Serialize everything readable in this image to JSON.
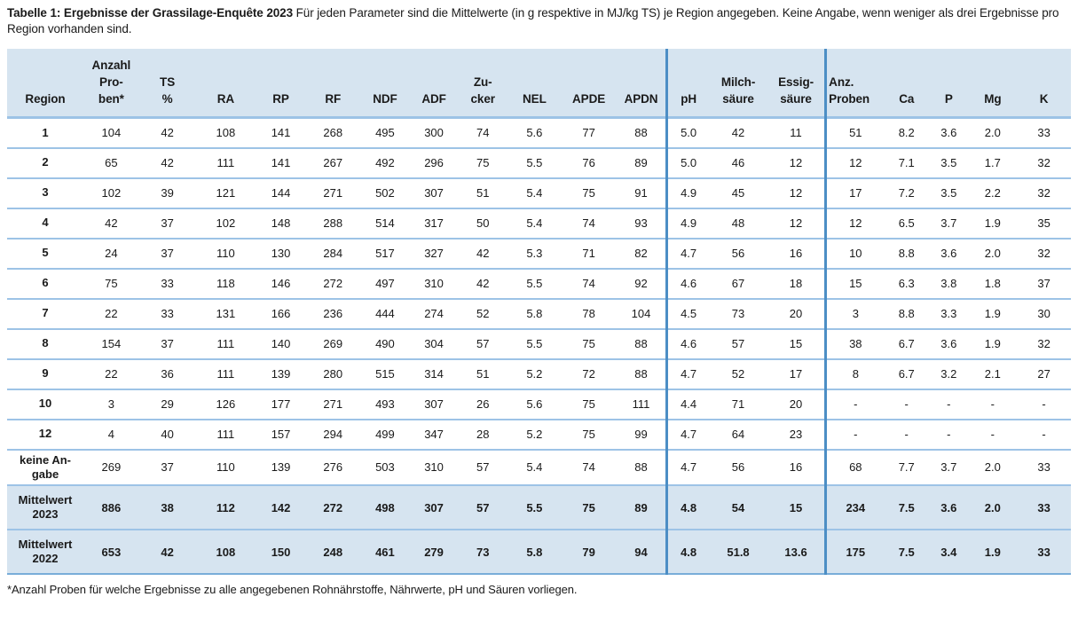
{
  "caption": {
    "bold": "Tabelle 1: Ergebnisse der Grassilage-Enquête 2023",
    "rest": " Für jeden Parameter sind die Mittelwerte (in g respektive in MJ/kg TS) je Region angegeben. Keine Angabe, wenn weniger als drei Ergebnisse pro Region vorhanden sind."
  },
  "colors": {
    "header_bg": "#d6e4f0",
    "row_line": "#9dc3e6",
    "divider": "#4c8ec5",
    "table_bottom": "#79add9",
    "text": "#1a1a1a"
  },
  "chart_data": {
    "type": "table",
    "title": "Tabelle 1: Ergebnisse der Grassilage-Enquête 2023"
  },
  "table": {
    "columns": [
      {
        "id": "region",
        "lines": [
          "Region"
        ]
      },
      {
        "id": "anzahl-proben",
        "lines": [
          "Anzahl",
          "Pro-",
          "ben*"
        ]
      },
      {
        "id": "ts-prozent",
        "lines": [
          "TS",
          "%"
        ]
      },
      {
        "id": "ra",
        "lines": [
          "RA"
        ]
      },
      {
        "id": "rp",
        "lines": [
          "RP"
        ]
      },
      {
        "id": "rf",
        "lines": [
          "RF"
        ]
      },
      {
        "id": "ndf",
        "lines": [
          "NDF"
        ]
      },
      {
        "id": "adf",
        "lines": [
          "ADF"
        ]
      },
      {
        "id": "zucker",
        "lines": [
          "Zu-",
          "cker"
        ]
      },
      {
        "id": "nel",
        "lines": [
          "NEL"
        ]
      },
      {
        "id": "apde",
        "lines": [
          "APDE"
        ]
      },
      {
        "id": "apdn",
        "lines": [
          "APDN"
        ]
      },
      {
        "id": "ph",
        "lines": [
          "pH"
        ]
      },
      {
        "id": "milchsaeure",
        "lines": [
          "Milch-",
          "säure"
        ]
      },
      {
        "id": "essigsaeure",
        "lines": [
          "Essig-",
          "säure"
        ]
      },
      {
        "id": "anz-proben",
        "lines": [
          "Anz.",
          "Proben"
        ],
        "align": "left"
      },
      {
        "id": "ca",
        "lines": [
          "Ca"
        ]
      },
      {
        "id": "p",
        "lines": [
          "P"
        ]
      },
      {
        "id": "mg",
        "lines": [
          "Mg"
        ]
      },
      {
        "id": "k",
        "lines": [
          "K"
        ]
      }
    ],
    "rows": [
      {
        "label_lines": [
          "1"
        ],
        "cells": [
          "104",
          "42",
          "108",
          "141",
          "268",
          "495",
          "300",
          "74",
          "5.6",
          "77",
          "88",
          "5.0",
          "42",
          "11",
          "51",
          "8.2",
          "3.6",
          "2.0",
          "33"
        ]
      },
      {
        "label_lines": [
          "2"
        ],
        "cells": [
          "65",
          "42",
          "111",
          "141",
          "267",
          "492",
          "296",
          "75",
          "5.5",
          "76",
          "89",
          "5.0",
          "46",
          "12",
          "12",
          "7.1",
          "3.5",
          "1.7",
          "32"
        ]
      },
      {
        "label_lines": [
          "3"
        ],
        "cells": [
          "102",
          "39",
          "121",
          "144",
          "271",
          "502",
          "307",
          "51",
          "5.4",
          "75",
          "91",
          "4.9",
          "45",
          "12",
          "17",
          "7.2",
          "3.5",
          "2.2",
          "32"
        ]
      },
      {
        "label_lines": [
          "4"
        ],
        "cells": [
          "42",
          "37",
          "102",
          "148",
          "288",
          "514",
          "317",
          "50",
          "5.4",
          "74",
          "93",
          "4.9",
          "48",
          "12",
          "12",
          "6.5",
          "3.7",
          "1.9",
          "35"
        ]
      },
      {
        "label_lines": [
          "5"
        ],
        "cells": [
          "24",
          "37",
          "110",
          "130",
          "284",
          "517",
          "327",
          "42",
          "5.3",
          "71",
          "82",
          "4.7",
          "56",
          "16",
          "10",
          "8.8",
          "3.6",
          "2.0",
          "32"
        ]
      },
      {
        "label_lines": [
          "6"
        ],
        "cells": [
          "75",
          "33",
          "118",
          "146",
          "272",
          "497",
          "310",
          "42",
          "5.5",
          "74",
          "92",
          "4.6",
          "67",
          "18",
          "15",
          "6.3",
          "3.8",
          "1.8",
          "37"
        ]
      },
      {
        "label_lines": [
          "7"
        ],
        "cells": [
          "22",
          "33",
          "131",
          "166",
          "236",
          "444",
          "274",
          "52",
          "5.8",
          "78",
          "104",
          "4.5",
          "73",
          "20",
          "3",
          "8.8",
          "3.3",
          "1.9",
          "30"
        ]
      },
      {
        "label_lines": [
          "8"
        ],
        "cells": [
          "154",
          "37",
          "111",
          "140",
          "269",
          "490",
          "304",
          "57",
          "5.5",
          "75",
          "88",
          "4.6",
          "57",
          "15",
          "38",
          "6.7",
          "3.6",
          "1.9",
          "32"
        ]
      },
      {
        "label_lines": [
          "9"
        ],
        "cells": [
          "22",
          "36",
          "111",
          "139",
          "280",
          "515",
          "314",
          "51",
          "5.2",
          "72",
          "88",
          "4.7",
          "52",
          "17",
          "8",
          "6.7",
          "3.2",
          "2.1",
          "27"
        ]
      },
      {
        "label_lines": [
          "10"
        ],
        "cells": [
          "3",
          "29",
          "126",
          "177",
          "271",
          "493",
          "307",
          "26",
          "5.6",
          "75",
          "111",
          "4.4",
          "71",
          "20",
          "-",
          "-",
          "-",
          "-",
          "-"
        ]
      },
      {
        "label_lines": [
          "12"
        ],
        "cells": [
          "4",
          "40",
          "111",
          "157",
          "294",
          "499",
          "347",
          "28",
          "5.2",
          "75",
          "99",
          "4.7",
          "64",
          "23",
          "-",
          "-",
          "-",
          "-",
          "-"
        ]
      },
      {
        "label_lines": [
          "keine An-",
          "gabe"
        ],
        "cells": [
          "269",
          "37",
          "110",
          "139",
          "276",
          "503",
          "310",
          "57",
          "5.4",
          "74",
          "88",
          "4.7",
          "56",
          "16",
          "68",
          "7.7",
          "3.7",
          "2.0",
          "33"
        ]
      },
      {
        "label_lines": [
          "Mittelwert",
          "2023"
        ],
        "variant": "summary",
        "cells": [
          "886",
          "38",
          "112",
          "142",
          "272",
          "498",
          "307",
          "57",
          "5.5",
          "75",
          "89",
          "4.8",
          "54",
          "15",
          "234",
          "7.5",
          "3.6",
          "2.0",
          "33"
        ]
      },
      {
        "label_lines": [
          "Mittelwert",
          "2022"
        ],
        "variant": "summary",
        "cells": [
          "653",
          "42",
          "108",
          "150",
          "248",
          "461",
          "279",
          "73",
          "5.8",
          "79",
          "94",
          "4.8",
          "51.8",
          "13.6",
          "175",
          "7.5",
          "3.4",
          "1.9",
          "33"
        ]
      }
    ],
    "footnote": "*Anzahl Proben für welche Ergebnisse zu alle angegebenen Rohnährstoffe, Nährwerte, pH und Säuren vorliegen."
  }
}
